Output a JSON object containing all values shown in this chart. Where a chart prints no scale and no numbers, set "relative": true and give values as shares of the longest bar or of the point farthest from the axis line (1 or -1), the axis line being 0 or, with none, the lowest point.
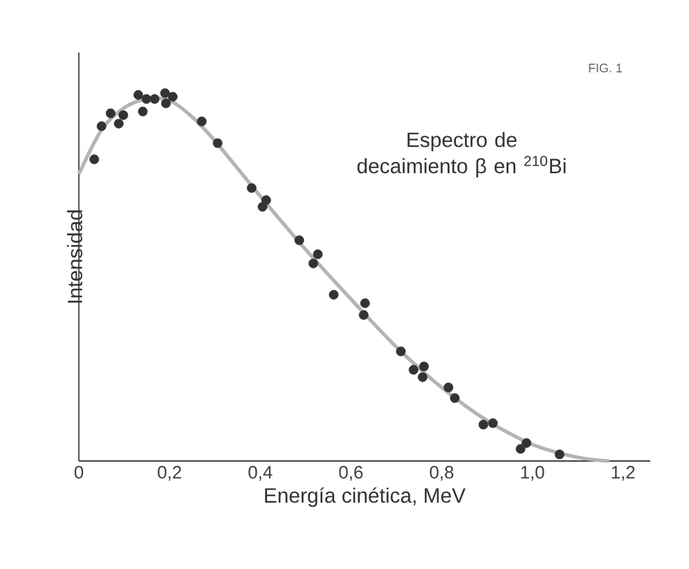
{
  "chart_data": {
    "type": "scatter",
    "relative": true,
    "xlabel": "Energía cinética, MeV",
    "ylabel": "Intensidad",
    "annotations": [
      "FIG. 1",
      "Espectro de decaimiento β en $^{210}$Bi"
    ],
    "xlim": [
      0,
      1.26
    ],
    "xticks": [
      0,
      {
        "value": 0.2,
        "label": "0,2"
      },
      {
        "value": 0.4,
        "label": "0,4"
      },
      {
        "value": 0.6,
        "label": "0,6"
      },
      {
        "value": 0.8,
        "label": "0,8"
      },
      {
        "value": 1.0,
        "label": "1,0"
      },
      {
        "value": 1.2,
        "label": "1,2"
      }
    ],
    "tick_labels": "x",
    "grid": false,
    "series": [
      {
        "type": "line",
        "color": "#b4b4b4",
        "marker": "none",
        "x": [
          0,
          0.05,
          0.1,
          0.15,
          0.2,
          0.25,
          0.3,
          0.4,
          0.5,
          0.6,
          0.7,
          0.8,
          0.9,
          1.0,
          1.1,
          1.17
        ],
        "values": [
          0.78,
          0.9,
          0.96,
          0.985,
          0.98,
          0.935,
          0.87,
          0.72,
          0.575,
          0.44,
          0.31,
          0.2,
          0.11,
          0.045,
          0.01,
          0
        ]
      },
      {
        "type": "scatter",
        "color": "#333333",
        "marker": "circle",
        "x": [
          0.034,
          0.05,
          0.07,
          0.088,
          0.098,
          0.131,
          0.141,
          0.149,
          0.167,
          0.19,
          0.192,
          0.207,
          0.271,
          0.306,
          0.381,
          0.413,
          0.405,
          0.486,
          0.527,
          0.517,
          0.562,
          0.631,
          0.628,
          0.71,
          0.738,
          0.761,
          0.758,
          0.815,
          0.829,
          0.892,
          0.913,
          0.974,
          0.987,
          1.06
        ],
        "values": [
          0.82,
          0.91,
          0.945,
          0.917,
          0.94,
          0.995,
          0.95,
          0.984,
          0.984,
          1.0,
          0.972,
          0.99,
          0.923,
          0.864,
          0.742,
          0.709,
          0.691,
          0.6,
          0.562,
          0.537,
          0.452,
          0.429,
          0.397,
          0.298,
          0.248,
          0.257,
          0.228,
          0.2,
          0.171,
          0.099,
          0.103,
          0.033,
          0.049,
          0.018
        ]
      }
    ]
  }
}
